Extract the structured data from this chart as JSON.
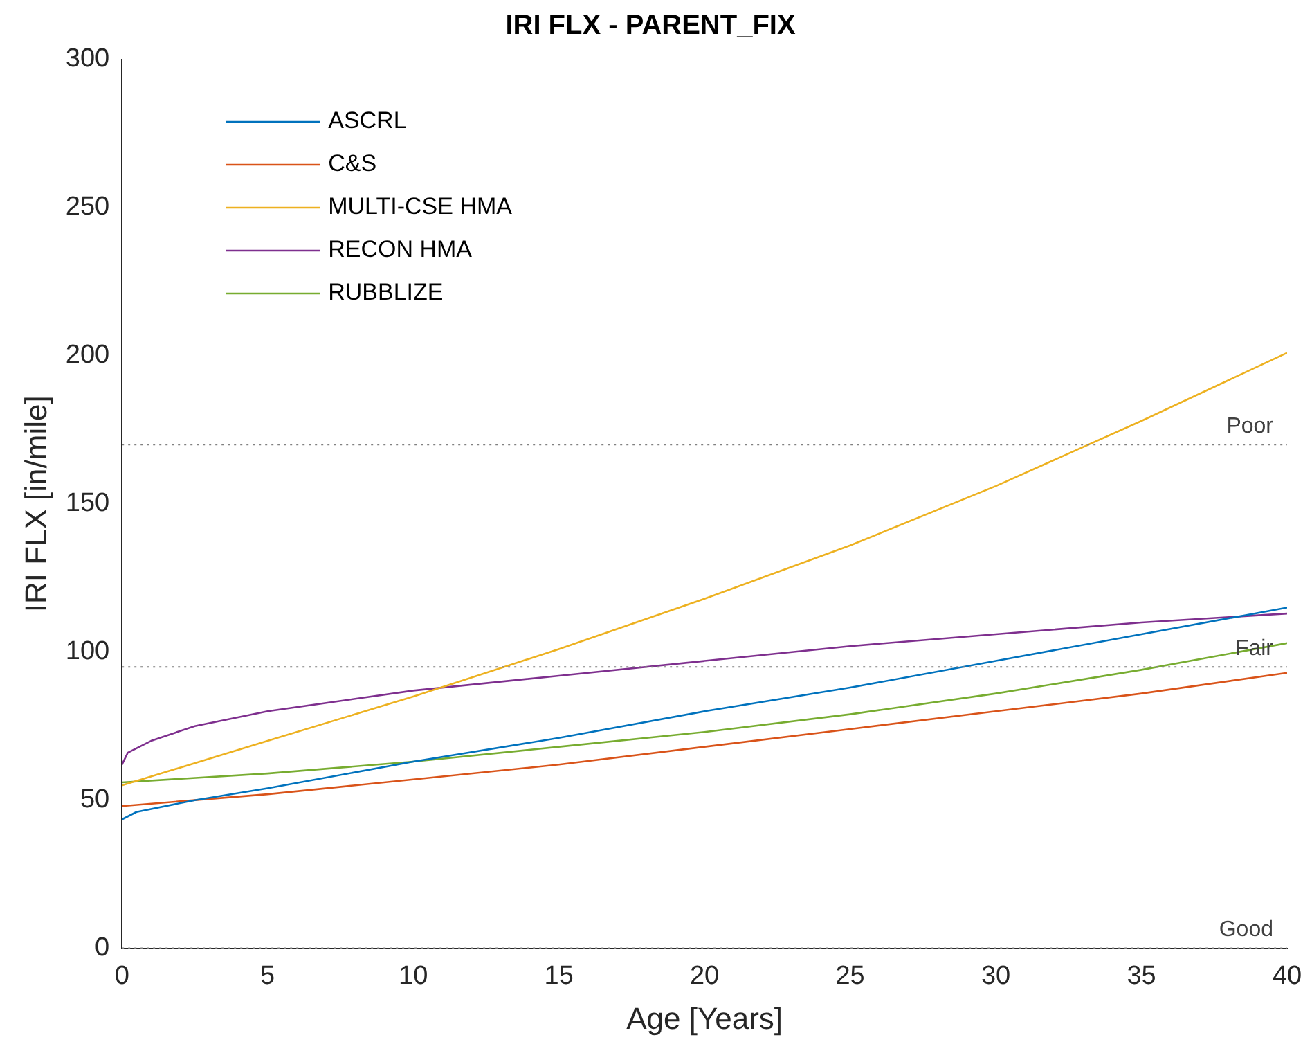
{
  "chart_data": {
    "type": "line",
    "title": "IRI FLX - PARENT_FIX",
    "xlabel": "Age [Years]",
    "ylabel": "IRI FLX [in/mile]",
    "xlim": [
      0,
      40
    ],
    "xticks": [
      0,
      5,
      10,
      15,
      20,
      25,
      30,
      35,
      40
    ],
    "ylim": [
      0,
      300
    ],
    "yticks": [
      0,
      50,
      100,
      150,
      200,
      250,
      300
    ],
    "grid": false,
    "legend": "top left",
    "marker": "none",
    "line_style": "solid",
    "series": [
      {
        "name": "ASCRL",
        "color": "#0072bd",
        "x": [
          0,
          0.5,
          2.5,
          5,
          10,
          15,
          20,
          25,
          30,
          35,
          40
        ],
        "values": [
          43.5,
          46,
          50,
          54,
          63,
          71,
          80,
          88,
          97,
          106,
          115
        ]
      },
      {
        "name": "C&S",
        "color": "#d95319",
        "x": [
          0,
          5,
          10,
          15,
          20,
          25,
          30,
          35,
          40
        ],
        "values": [
          48,
          52,
          57,
          62,
          68,
          74,
          80,
          86,
          93
        ]
      },
      {
        "name": "MULTI-CSE HMA",
        "color": "#edb120",
        "x": [
          0,
          5,
          10,
          15,
          20,
          25,
          30,
          35,
          40
        ],
        "values": [
          55,
          70,
          85,
          101,
          118,
          136,
          156,
          178,
          201
        ]
      },
      {
        "name": "RECON HMA",
        "color": "#7e2f8e",
        "x": [
          0,
          0.2,
          1,
          2.5,
          5,
          10,
          15,
          20,
          25,
          30,
          35,
          40
        ],
        "values": [
          62,
          66,
          70,
          75,
          80,
          87,
          92,
          97,
          102,
          106,
          110,
          113
        ]
      },
      {
        "name": "RUBBLIZE",
        "color": "#77ac30",
        "x": [
          0,
          5,
          10,
          15,
          20,
          25,
          30,
          35,
          40
        ],
        "values": [
          56,
          59,
          63,
          68,
          73,
          79,
          86,
          94,
          103
        ]
      }
    ],
    "ref_lines": [
      {
        "axis": "y",
        "value": 170,
        "label": "Poor",
        "color": "#808080",
        "line_style": "dotted"
      },
      {
        "axis": "y",
        "value": 95,
        "label": "Fair",
        "color": "#808080",
        "line_style": "dotted"
      },
      {
        "axis": "y",
        "value": 0,
        "label": "Good",
        "color": "#808080",
        "line_style": "dotted"
      }
    ]
  }
}
